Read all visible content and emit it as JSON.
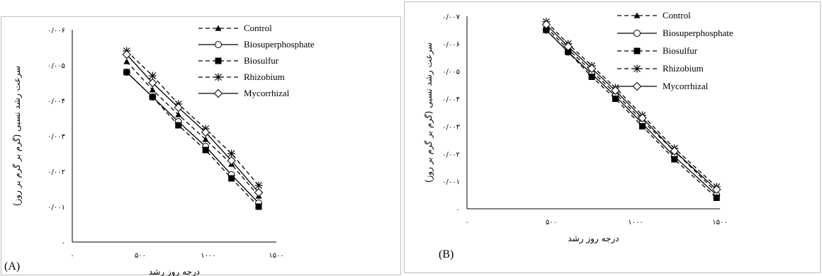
{
  "panels": [
    {
      "label": "(A)"
    },
    {
      "label": "(B)"
    }
  ],
  "chart_data": [
    {
      "type": "line",
      "panel": "(A)",
      "xlabel": "درجه روز رشد",
      "ylabel": "سرعت رشد نسبی (گرم بر گرم بر روز)",
      "xlim": [
        0,
        1500
      ],
      "ylim": [
        0,
        0.006
      ],
      "xticks": [
        0,
        500,
        1000,
        1500
      ],
      "xtick_labels": [
        "۰",
        "۵۰۰",
        "۱۰۰۰",
        "۱۵۰۰"
      ],
      "yticks": [
        0,
        0.001,
        0.002,
        0.003,
        0.004,
        0.005,
        0.006
      ],
      "ytick_labels": [
        "۰",
        "۰/۰۰۱",
        "۰/۰۰۲",
        "۰/۰۰۳",
        "۰/۰۰۴",
        "۰/۰۰۵",
        "۰/۰۰۶"
      ],
      "legend_position": "top-right",
      "x": [
        400,
        590,
        780,
        980,
        1170,
        1370
      ],
      "series": [
        {
          "name": "Control",
          "dash": "dashed",
          "marker": "triangle",
          "values": [
            0.0051,
            0.0043,
            0.0036,
            0.0029,
            0.0022,
            0.0013
          ]
        },
        {
          "name": "Biosuperphosphate",
          "dash": "solid",
          "marker": "circle-open",
          "values": [
            0.0048,
            0.0041,
            0.0034,
            0.0027,
            0.0019,
            0.0011
          ]
        },
        {
          "name": "Biosulfur",
          "dash": "dashed",
          "marker": "square",
          "values": [
            0.0048,
            0.0041,
            0.0033,
            0.0026,
            0.0018,
            0.001
          ]
        },
        {
          "name": "Rhizobium",
          "dash": "dashed",
          "marker": "star",
          "values": [
            0.0054,
            0.0047,
            0.0039,
            0.0032,
            0.0025,
            0.0016
          ]
        },
        {
          "name": "Mycorrhizal",
          "dash": "solid",
          "marker": "diamond-open",
          "values": [
            0.0053,
            0.0045,
            0.0038,
            0.0031,
            0.0023,
            0.0014
          ]
        }
      ]
    },
    {
      "type": "line",
      "panel": "(B)",
      "xlabel": "درجه روز رشد",
      "ylabel": "سرعت رشد نسبی (گرم بر گرم بر روز)",
      "xlim": [
        0,
        1500
      ],
      "ylim": [
        0,
        0.007
      ],
      "xticks": [
        0,
        500,
        1000,
        1500
      ],
      "xtick_labels": [
        "۰",
        "۵۰۰",
        "۱۰۰۰",
        "۱۵۰۰"
      ],
      "yticks": [
        0,
        0.001,
        0.002,
        0.003,
        0.004,
        0.005,
        0.006,
        0.007
      ],
      "ytick_labels": [
        "۰",
        "۰/۰۰۱",
        "۰/۰۰۲",
        "۰/۰۰۳",
        "۰/۰۰۴",
        "۰/۰۰۵",
        "۰/۰۰۶",
        "۰/۰۰۷"
      ],
      "legend_position": "top-right",
      "x": [
        470,
        600,
        740,
        880,
        1040,
        1230,
        1480
      ],
      "series": [
        {
          "name": "Control",
          "dash": "dashed",
          "marker": "triangle",
          "values": [
            0.0066,
            0.0058,
            0.005,
            0.0042,
            0.0032,
            0.0021,
            0.0006
          ]
        },
        {
          "name": "Biosuperphosphate",
          "dash": "solid",
          "marker": "circle-open",
          "values": [
            0.0065,
            0.0057,
            0.0049,
            0.0041,
            0.0031,
            0.0019,
            0.0005
          ]
        },
        {
          "name": "Biosulfur",
          "dash": "dashed",
          "marker": "square",
          "values": [
            0.0065,
            0.0057,
            0.0048,
            0.004,
            0.003,
            0.0018,
            0.0004
          ]
        },
        {
          "name": "Rhizobium",
          "dash": "dashed",
          "marker": "star",
          "values": [
            0.0068,
            0.006,
            0.0052,
            0.0044,
            0.0034,
            0.0022,
            0.0008
          ]
        },
        {
          "name": "Mycorrhizal",
          "dash": "solid",
          "marker": "diamond-open",
          "values": [
            0.0067,
            0.0059,
            0.0051,
            0.0043,
            0.0033,
            0.0021,
            0.0007
          ]
        }
      ]
    }
  ]
}
